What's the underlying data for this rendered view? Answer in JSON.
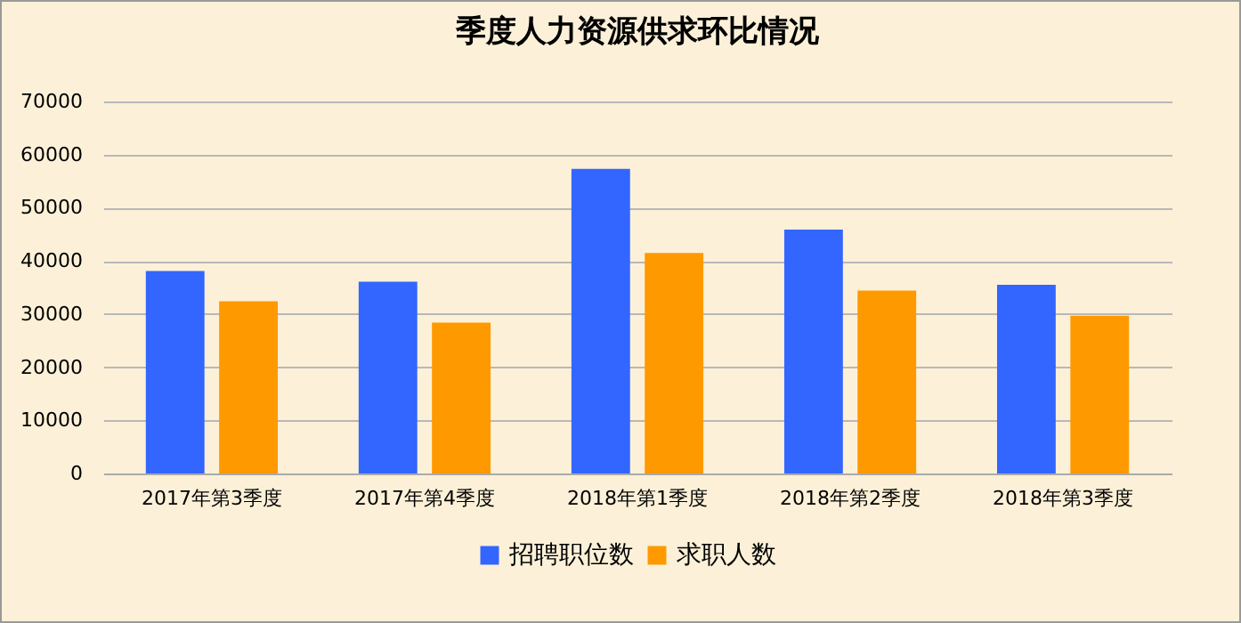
{
  "chart_data": {
    "type": "bar",
    "title": "季度人力资源供求环比情况",
    "categories": [
      "2017年第3季度",
      "2017年第4季度",
      "2018年第1季度",
      "2018年第2季度",
      "2018年第3季度"
    ],
    "series": [
      {
        "name": "招聘职位数",
        "color": "#3366ff",
        "values": [
          38100,
          36100,
          57300,
          45900,
          35500
        ]
      },
      {
        "name": "求职人数",
        "color": "#ff9900",
        "values": [
          32400,
          28400,
          41500,
          34400,
          29700
        ]
      }
    ],
    "ylim": [
      0,
      70000
    ],
    "yticks": [
      0,
      10000,
      20000,
      30000,
      40000,
      50000,
      60000,
      70000
    ],
    "grid": "y",
    "legend": "bottom"
  }
}
